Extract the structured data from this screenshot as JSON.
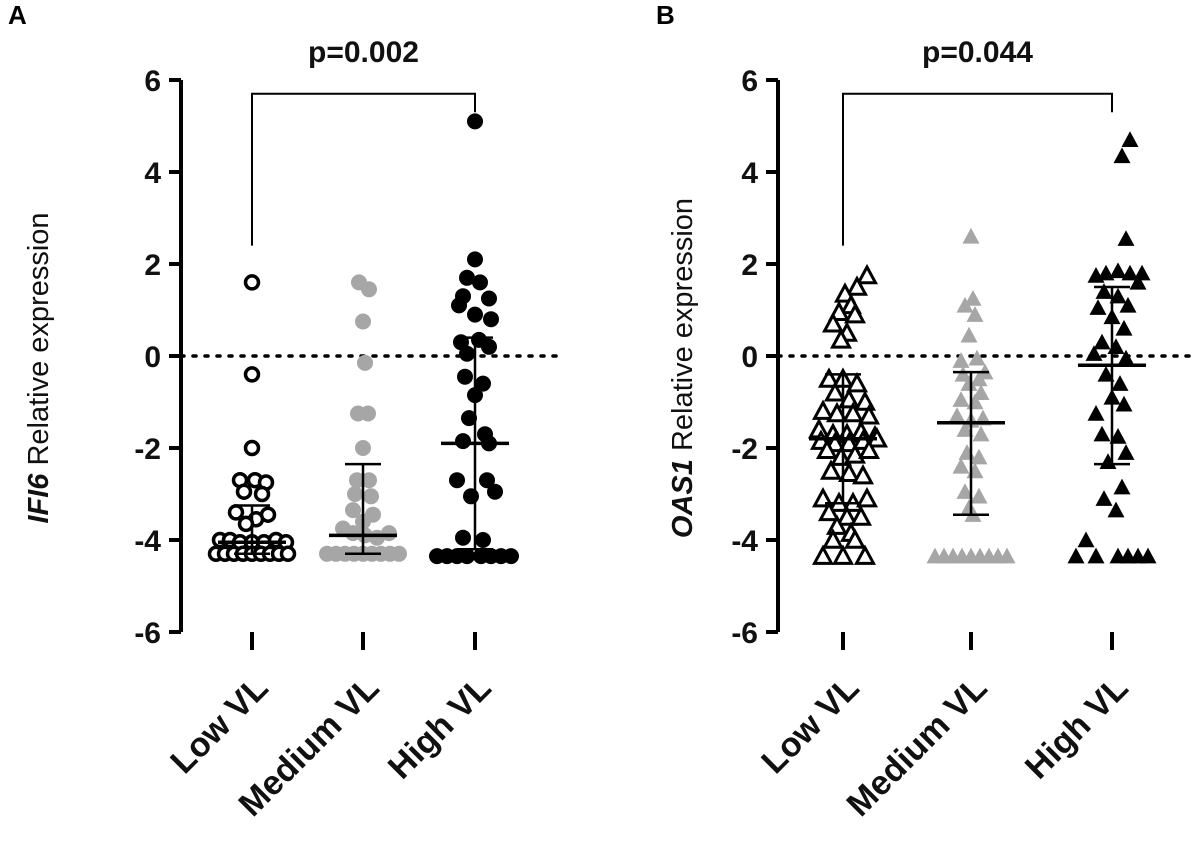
{
  "chart_data": [
    {
      "panel_label": "A",
      "type": "scatter",
      "ylabel_gene": "IFI6",
      "ylabel_rest": " Relative expression",
      "ylim": [
        -6,
        6
      ],
      "yticks": [
        "6",
        "4",
        "2",
        "0",
        "-2",
        "-4",
        "-6"
      ],
      "ytick_values": [
        6,
        4,
        2,
        0,
        -2,
        -4,
        -6
      ],
      "reference_line": 0,
      "categories": [
        "Low VL",
        "Medium VL",
        "High VL"
      ],
      "pvalue": {
        "text": "p=0.002",
        "from": "Low VL",
        "to": "High VL",
        "y": 5.7
      },
      "colors": {
        "Low VL": "#000000",
        "Medium VL": "#a6a6a6",
        "High VL": "#000000"
      },
      "marker": {
        "Low VL": "open-circle",
        "Medium VL": "filled-circle",
        "High VL": "filled-circle"
      },
      "summary": [
        {
          "category": "Low VL",
          "median": -4.05,
          "q1": -4.3,
          "q3": -3.25
        },
        {
          "category": "Medium VL",
          "median": -3.9,
          "q1": -4.3,
          "q3": -2.35
        },
        {
          "category": "High VL",
          "median": -1.9,
          "q1": -4.2,
          "q3": 0.4
        }
      ],
      "series": [
        {
          "name": "Low VL",
          "points": [
            [
              0,
              1.6
            ],
            [
              0,
              -0.4
            ],
            [
              0,
              -2.0
            ],
            [
              -0.12,
              -2.7
            ],
            [
              0.03,
              -2.7
            ],
            [
              0.14,
              -2.75
            ],
            [
              -0.08,
              -2.95
            ],
            [
              0.1,
              -3.0
            ],
            [
              -0.16,
              -3.4
            ],
            [
              0.16,
              -3.45
            ],
            [
              0.04,
              -3.55
            ],
            [
              -0.06,
              -3.65
            ],
            [
              -0.32,
              -4.0
            ],
            [
              -0.22,
              -4.0
            ],
            [
              -0.12,
              -4.05
            ],
            [
              0.0,
              -4.05
            ],
            [
              0.12,
              -4.05
            ],
            [
              0.24,
              -4.0
            ],
            [
              0.34,
              -4.05
            ],
            [
              -0.36,
              -4.3
            ],
            [
              -0.27,
              -4.3
            ],
            [
              -0.18,
              -4.3
            ],
            [
              -0.09,
              -4.3
            ],
            [
              0.0,
              -4.3
            ],
            [
              0.09,
              -4.3
            ],
            [
              0.18,
              -4.3
            ],
            [
              0.27,
              -4.3
            ],
            [
              0.36,
              -4.3
            ]
          ]
        },
        {
          "name": "Medium VL",
          "points": [
            [
              -0.04,
              1.6
            ],
            [
              0.06,
              1.45
            ],
            [
              0.0,
              0.75
            ],
            [
              0.02,
              -0.15
            ],
            [
              -0.05,
              -1.25
            ],
            [
              0.05,
              -1.25
            ],
            [
              0.0,
              -2.0
            ],
            [
              -0.06,
              -2.7
            ],
            [
              0.06,
              -2.7
            ],
            [
              -0.08,
              -3.0
            ],
            [
              0.08,
              -3.05
            ],
            [
              -0.1,
              -3.35
            ],
            [
              0.1,
              -3.45
            ],
            [
              0.0,
              -3.6
            ],
            [
              -0.2,
              -3.75
            ],
            [
              -0.1,
              -3.85
            ],
            [
              0.02,
              -3.9
            ],
            [
              0.14,
              -3.95
            ],
            [
              0.26,
              -3.85
            ],
            [
              -0.36,
              -4.3
            ],
            [
              -0.27,
              -4.3
            ],
            [
              -0.18,
              -4.3
            ],
            [
              -0.09,
              -4.3
            ],
            [
              0.0,
              -4.3
            ],
            [
              0.09,
              -4.3
            ],
            [
              0.18,
              -4.3
            ],
            [
              0.27,
              -4.3
            ],
            [
              0.36,
              -4.3
            ]
          ]
        },
        {
          "name": "High VL",
          "points": [
            [
              0,
              5.1
            ],
            [
              0.0,
              2.1
            ],
            [
              -0.08,
              1.7
            ],
            [
              0.05,
              1.6
            ],
            [
              -0.12,
              1.3
            ],
            [
              0.14,
              1.25
            ],
            [
              -0.16,
              1.1
            ],
            [
              0.0,
              0.9
            ],
            [
              0.16,
              0.8
            ],
            [
              -0.14,
              0.3
            ],
            [
              0.04,
              0.35
            ],
            [
              0.14,
              0.2
            ],
            [
              -0.08,
              0.05
            ],
            [
              -0.1,
              -0.45
            ],
            [
              0.08,
              -0.6
            ],
            [
              0.0,
              -0.85
            ],
            [
              -0.06,
              -1.35
            ],
            [
              0.1,
              -1.7
            ],
            [
              -0.12,
              -1.85
            ],
            [
              0.14,
              -1.9
            ],
            [
              -0.18,
              -2.7
            ],
            [
              0.12,
              -2.7
            ],
            [
              0.2,
              -2.95
            ],
            [
              -0.04,
              -3.05
            ],
            [
              -0.12,
              -3.95
            ],
            [
              0.08,
              -4.0
            ],
            [
              -0.38,
              -4.35
            ],
            [
              -0.28,
              -4.35
            ],
            [
              -0.18,
              -4.35
            ],
            [
              -0.08,
              -4.35
            ],
            [
              0.06,
              -4.35
            ],
            [
              0.16,
              -4.35
            ],
            [
              0.26,
              -4.35
            ],
            [
              0.36,
              -4.35
            ]
          ]
        }
      ]
    },
    {
      "panel_label": "B",
      "type": "scatter",
      "ylabel_gene": "OAS1",
      "ylabel_rest": " Relative expression",
      "ylim": [
        -6,
        6
      ],
      "yticks": [
        "6",
        "4",
        "2",
        "0",
        "-2",
        "-4",
        "-6"
      ],
      "ytick_values": [
        6,
        4,
        2,
        0,
        -2,
        -4,
        -6
      ],
      "reference_line": 0,
      "categories": [
        "Low VL",
        "Medium VL",
        "High VL"
      ],
      "pvalue": {
        "text": "p=0.044",
        "from": "Low VL",
        "to": "High VL",
        "y": 5.7
      },
      "colors": {
        "Low VL": "#000000",
        "Medium VL": "#a6a6a6",
        "High VL": "#000000"
      },
      "marker": {
        "Low VL": "open-triangle",
        "Medium VL": "filled-triangle",
        "High VL": "filled-triangle"
      },
      "summary": [
        {
          "category": "Low VL",
          "median": -1.8,
          "q1": -3.2,
          "q3": -0.4
        },
        {
          "category": "Medium VL",
          "median": -1.45,
          "q1": -3.45,
          "q3": -0.35
        },
        {
          "category": "High VL",
          "median": -0.2,
          "q1": -2.35,
          "q3": 1.5
        }
      ],
      "series": [
        {
          "name": "Low VL",
          "points": [
            [
              0.24,
              1.75
            ],
            [
              0.14,
              1.5
            ],
            [
              0.02,
              1.35
            ],
            [
              0.08,
              1.1
            ],
            [
              -0.04,
              0.95
            ],
            [
              0.12,
              0.9
            ],
            [
              -0.1,
              0.7
            ],
            [
              0.04,
              0.5
            ],
            [
              -0.02,
              0.35
            ],
            [
              -0.14,
              -0.5
            ],
            [
              0.0,
              -0.5
            ],
            [
              0.14,
              -0.6
            ],
            [
              -0.08,
              -0.8
            ],
            [
              0.06,
              -0.95
            ],
            [
              0.22,
              -1.0
            ],
            [
              -0.2,
              -1.2
            ],
            [
              -0.06,
              -1.25
            ],
            [
              0.1,
              -1.25
            ],
            [
              0.26,
              -1.3
            ],
            [
              -0.24,
              -1.6
            ],
            [
              -0.1,
              -1.7
            ],
            [
              0.04,
              -1.7
            ],
            [
              0.18,
              -1.65
            ],
            [
              0.32,
              -1.75
            ],
            [
              -0.22,
              -1.85
            ],
            [
              -0.08,
              -1.9
            ],
            [
              0.06,
              -1.9
            ],
            [
              0.2,
              -1.85
            ],
            [
              0.34,
              -1.8
            ],
            [
              -0.16,
              -2.05
            ],
            [
              -0.02,
              -2.2
            ],
            [
              0.12,
              -2.15
            ],
            [
              0.26,
              -2.05
            ],
            [
              -0.12,
              -2.5
            ],
            [
              0.06,
              -2.55
            ],
            [
              0.2,
              -2.6
            ],
            [
              -0.2,
              -3.1
            ],
            [
              -0.04,
              -3.2
            ],
            [
              0.1,
              -3.2
            ],
            [
              0.24,
              -3.1
            ],
            [
              -0.14,
              -3.4
            ],
            [
              0.04,
              -3.5
            ],
            [
              0.18,
              -3.5
            ],
            [
              -0.06,
              -3.7
            ],
            [
              0.08,
              -3.85
            ],
            [
              -0.2,
              -4.35
            ],
            [
              -0.1,
              -4.0
            ],
            [
              0.0,
              -4.35
            ],
            [
              0.12,
              -4.0
            ],
            [
              0.22,
              -4.35
            ]
          ]
        },
        {
          "name": "Medium VL",
          "points": [
            [
              0.0,
              2.6
            ],
            [
              0.02,
              1.25
            ],
            [
              -0.06,
              1.1
            ],
            [
              0.04,
              0.9
            ],
            [
              -0.02,
              0.45
            ],
            [
              -0.1,
              -0.1
            ],
            [
              0.06,
              -0.05
            ],
            [
              0.14,
              -0.35
            ],
            [
              -0.08,
              -0.4
            ],
            [
              0.08,
              -0.5
            ],
            [
              -0.02,
              -0.6
            ],
            [
              0.1,
              -0.8
            ],
            [
              -0.1,
              -0.95
            ],
            [
              0.04,
              -1.0
            ],
            [
              -0.14,
              -1.3
            ],
            [
              0.0,
              -1.4
            ],
            [
              0.12,
              -1.35
            ],
            [
              -0.06,
              -1.6
            ],
            [
              0.1,
              -1.7
            ],
            [
              -0.04,
              -2.1
            ],
            [
              0.08,
              -2.2
            ],
            [
              -0.1,
              -2.4
            ],
            [
              0.04,
              -2.5
            ],
            [
              -0.06,
              -2.95
            ],
            [
              0.08,
              -3.05
            ],
            [
              -0.02,
              -3.3
            ],
            [
              0.02,
              -3.45
            ],
            [
              -0.36,
              -4.35
            ],
            [
              -0.27,
              -4.35
            ],
            [
              -0.18,
              -4.35
            ],
            [
              -0.09,
              -4.35
            ],
            [
              0.0,
              -4.35
            ],
            [
              0.09,
              -4.35
            ],
            [
              0.18,
              -4.35
            ],
            [
              0.27,
              -4.35
            ],
            [
              0.36,
              -4.35
            ]
          ]
        },
        {
          "name": "High VL",
          "points": [
            [
              0.18,
              4.7
            ],
            [
              0.1,
              4.35
            ],
            [
              0.14,
              2.55
            ],
            [
              -0.06,
              1.8
            ],
            [
              0.06,
              1.85
            ],
            [
              0.18,
              1.8
            ],
            [
              0.3,
              1.8
            ],
            [
              -0.16,
              1.75
            ],
            [
              0.26,
              1.6
            ],
            [
              -0.08,
              1.4
            ],
            [
              0.06,
              1.3
            ],
            [
              0.16,
              1.1
            ],
            [
              -0.14,
              1.05
            ],
            [
              0.0,
              0.85
            ],
            [
              0.12,
              0.6
            ],
            [
              -0.1,
              0.3
            ],
            [
              0.04,
              0.2
            ],
            [
              -0.18,
              0.05
            ],
            [
              0.14,
              -0.05
            ],
            [
              -0.06,
              -0.4
            ],
            [
              0.08,
              -0.6
            ],
            [
              0.0,
              -0.9
            ],
            [
              0.12,
              -1.05
            ],
            [
              -0.16,
              -1.25
            ],
            [
              -0.1,
              -1.7
            ],
            [
              0.06,
              -1.75
            ],
            [
              0.14,
              -2.1
            ],
            [
              -0.04,
              -2.3
            ],
            [
              0.1,
              -2.85
            ],
            [
              -0.08,
              -3.1
            ],
            [
              0.04,
              -3.35
            ],
            [
              -0.36,
              -4.35
            ],
            [
              -0.26,
              -4.0
            ],
            [
              -0.16,
              -4.35
            ],
            [
              0.06,
              -4.35
            ],
            [
              0.16,
              -4.35
            ],
            [
              0.26,
              -4.35
            ],
            [
              0.36,
              -4.35
            ]
          ]
        }
      ]
    }
  ]
}
